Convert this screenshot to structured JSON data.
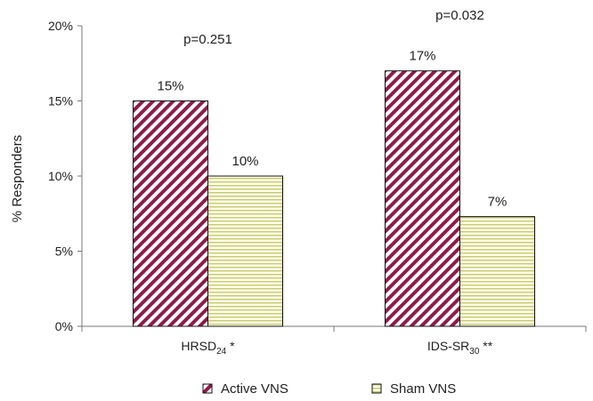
{
  "colors": {
    "active_stripe": "#8e1b4a",
    "sham_stripe": "#c8c878",
    "sham_fill": "#ffffe4",
    "axis": "#777777",
    "text": "#222222"
  },
  "chart_data": {
    "type": "bar",
    "ylabel": "% Responders",
    "ylim": [
      0,
      20
    ],
    "yticks": [
      0,
      5,
      10,
      15,
      20
    ],
    "ytick_labels": [
      "0%",
      "5%",
      "10%",
      "15%",
      "20%"
    ],
    "categories": [
      {
        "base": "HRSD",
        "sub": "24",
        "suffix": " *"
      },
      {
        "base": "IDS-SR",
        "sub": "30",
        "suffix": " **"
      }
    ],
    "series": [
      {
        "name": "Active VNS",
        "values": [
          15,
          17
        ],
        "labels": [
          "15%",
          "17%"
        ],
        "pattern": "diagonal"
      },
      {
        "name": "Sham VNS",
        "values": [
          10,
          7.3
        ],
        "labels": [
          "10%",
          "7%"
        ],
        "pattern": "horizontal"
      }
    ],
    "annotations": [
      "p=0.251",
      "p=0.032"
    ],
    "legend_position": "bottom",
    "grid": false
  }
}
